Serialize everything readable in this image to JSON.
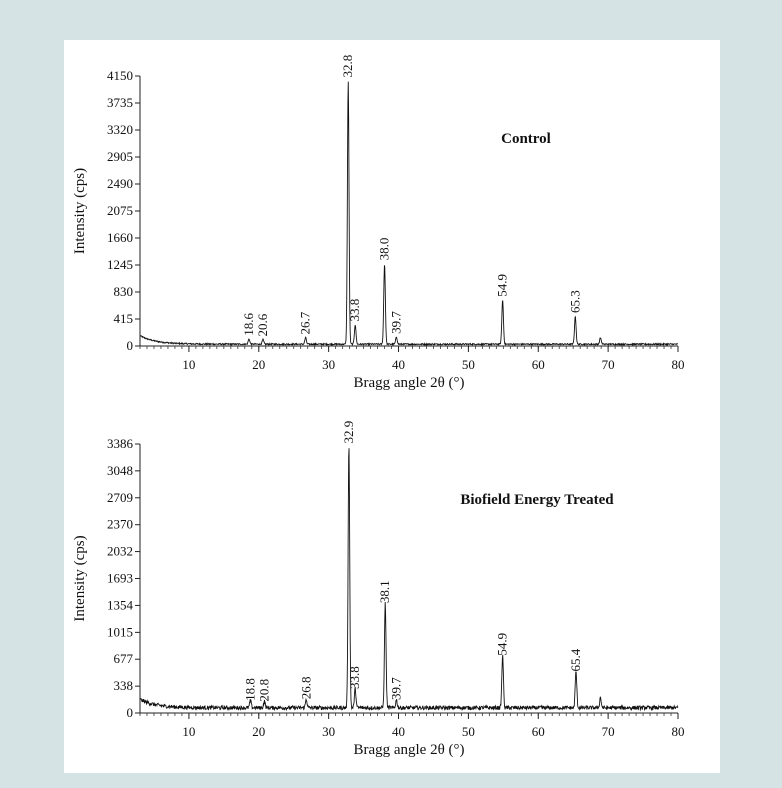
{
  "chart_data": [
    {
      "type": "line",
      "title": "Control",
      "xlabel": "Bragg angle 2θ (°)",
      "ylabel": "Intensity (cps)",
      "xlim": [
        3,
        80
      ],
      "ylim": [
        0,
        4150
      ],
      "xticks": [
        10,
        20,
        30,
        40,
        50,
        60,
        70,
        80
      ],
      "yticks": [
        0,
        415,
        830,
        1245,
        1660,
        2075,
        2490,
        2905,
        3320,
        3735,
        4150
      ],
      "noise": 15,
      "peaks": [
        {
          "x": 18.6,
          "y": 80,
          "label": "18.6"
        },
        {
          "x": 20.6,
          "y": 70,
          "label": "20.6"
        },
        {
          "x": 26.7,
          "y": 100,
          "label": "26.7"
        },
        {
          "x": 32.8,
          "y": 4050,
          "label": "32.8"
        },
        {
          "x": 33.8,
          "y": 300,
          "label": "33.8"
        },
        {
          "x": 38.0,
          "y": 1240,
          "label": "38.0"
        },
        {
          "x": 39.7,
          "y": 110,
          "label": "39.7"
        },
        {
          "x": 54.9,
          "y": 680,
          "label": "54.9"
        },
        {
          "x": 65.3,
          "y": 430,
          "label": "65.3"
        },
        {
          "x": 68.9,
          "y": 100,
          "label": ""
        }
      ]
    },
    {
      "type": "line",
      "title": "Biofield Energy Treated",
      "xlabel": "Bragg angle 2θ (°)",
      "ylabel": "Intensity (cps)",
      "xlim": [
        3,
        80
      ],
      "ylim": [
        0,
        3386
      ],
      "xticks": [
        10,
        20,
        30,
        40,
        50,
        60,
        70,
        80
      ],
      "yticks": [
        0,
        338,
        677,
        1015,
        1354,
        1693,
        2032,
        2370,
        2709,
        3048,
        3386
      ],
      "noise": 35,
      "peaks": [
        {
          "x": 18.8,
          "y": 90,
          "label": "18.8"
        },
        {
          "x": 20.8,
          "y": 80,
          "label": "20.8"
        },
        {
          "x": 26.8,
          "y": 110,
          "label": "26.8"
        },
        {
          "x": 32.9,
          "y": 3330,
          "label": "32.9"
        },
        {
          "x": 33.8,
          "y": 240,
          "label": "33.8"
        },
        {
          "x": 38.1,
          "y": 1320,
          "label": "38.1"
        },
        {
          "x": 39.7,
          "y": 100,
          "label": "39.7"
        },
        {
          "x": 54.9,
          "y": 660,
          "label": "54.9"
        },
        {
          "x": 65.4,
          "y": 460,
          "label": "65.4"
        },
        {
          "x": 68.9,
          "y": 130,
          "label": ""
        }
      ]
    }
  ]
}
